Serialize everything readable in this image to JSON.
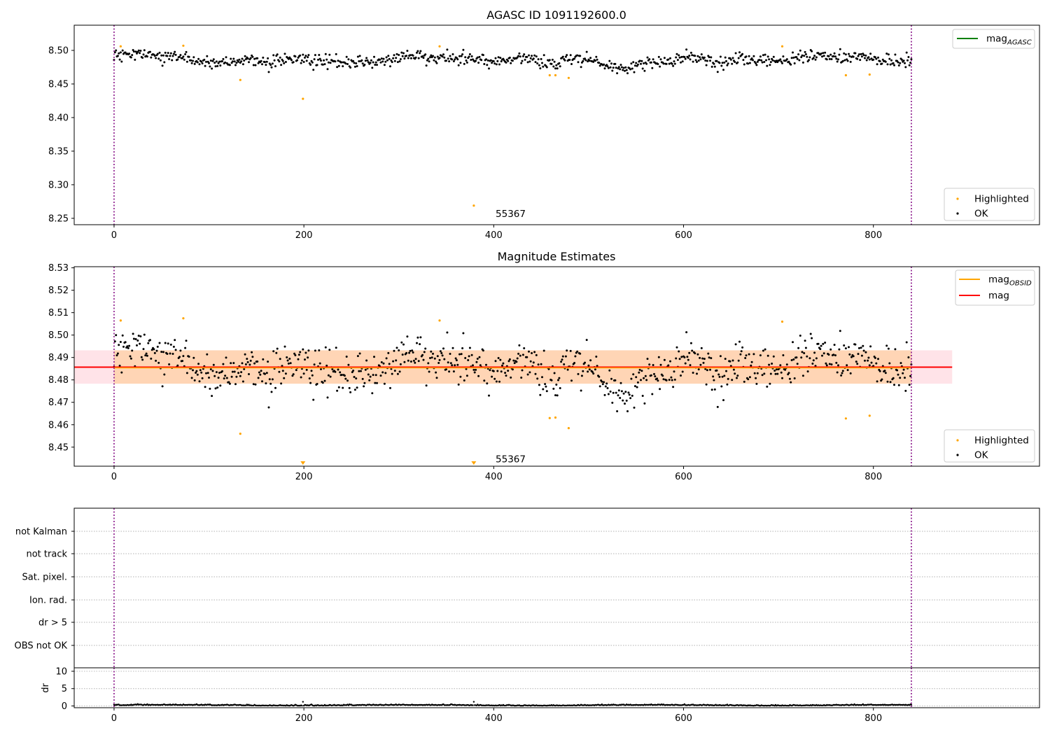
{
  "chart_data": [
    {
      "type": "scatter",
      "title": "AGASC ID 1091192600.0",
      "xlabel": "",
      "ylabel": "",
      "xlim": [
        -42,
        975
      ],
      "ylim": [
        8.2405,
        8.5375
      ],
      "xticks": [
        "0",
        "200",
        "400",
        "600",
        "800"
      ],
      "yticks": [
        "8.25",
        "8.30",
        "8.35",
        "8.40",
        "8.45",
        "8.50"
      ],
      "vlines": [
        0,
        840
      ],
      "annotation": {
        "text": "55367",
        "x": 402,
        "y": 8.252
      },
      "legends": [
        {
          "placement": "upper right",
          "entries": [
            {
              "label": "mag",
              "subscript": "AGASC",
              "color": "#008000"
            }
          ]
        },
        {
          "placement": "lower right",
          "entries": [
            {
              "label": "Highlighted",
              "color": "#ffa500"
            },
            {
              "label": "OK",
              "color": "#000000"
            }
          ]
        }
      ],
      "series": [
        {
          "name": "OK",
          "color": "#000000",
          "n_points": 841,
          "baseline": 8.486,
          "spread": 0.006,
          "note": "dense band of points between ~8.467 and ~8.505"
        },
        {
          "name": "Highlighted",
          "color": "#ffa500",
          "x": [
            7,
            73,
            133,
            199,
            343,
            379,
            459,
            465,
            479,
            704,
            771,
            796
          ],
          "y": [
            8.506,
            8.507,
            8.456,
            8.428,
            8.506,
            8.269,
            8.463,
            8.463,
            8.459,
            8.506,
            8.463,
            8.464
          ]
        }
      ]
    },
    {
      "type": "scatter",
      "title": "Magnitude Estimates",
      "xlabel": "",
      "ylabel": "",
      "xlim": [
        -42,
        975
      ],
      "ylim": [
        8.4415,
        8.5305
      ],
      "xticks": [
        "0",
        "200",
        "400",
        "600",
        "800"
      ],
      "yticks": [
        "8.45",
        "8.46",
        "8.47",
        "8.48",
        "8.49",
        "8.50",
        "8.51",
        "8.52",
        "8.53"
      ],
      "vlines": [
        0,
        840
      ],
      "mag_line": 8.4857,
      "mag_obsid_line": 8.4857,
      "mag_band": [
        8.4783,
        8.4932
      ],
      "band_x": [
        -42,
        883
      ],
      "annotation": {
        "text": "55367",
        "x": 402,
        "y": 8.4432
      },
      "clipped_markers_x": [
        199,
        379
      ],
      "legends": [
        {
          "placement": "upper right",
          "entries": [
            {
              "label": "mag",
              "subscript": "OBSID",
              "color": "#ffa500"
            },
            {
              "label": "mag",
              "subscript": "",
              "color": "#ff0000"
            }
          ]
        },
        {
          "placement": "lower right",
          "entries": [
            {
              "label": "Highlighted",
              "color": "#ffa500"
            },
            {
              "label": "OK",
              "color": "#000000"
            }
          ]
        }
      ],
      "series": [
        {
          "name": "OK",
          "color": "#000000",
          "n_points": 841,
          "baseline": 8.486,
          "spread": 0.006
        },
        {
          "name": "Highlighted",
          "color": "#ffa500",
          "x": [
            7,
            73,
            133,
            343,
            459,
            465,
            479,
            704,
            771,
            796
          ],
          "y": [
            8.5065,
            8.5075,
            8.456,
            8.5065,
            8.463,
            8.4632,
            8.4585,
            8.506,
            8.4628,
            8.464
          ]
        }
      ]
    },
    {
      "type": "table",
      "title": "",
      "categories": [
        "not Kalman",
        "not track",
        "Sat. pixel.",
        "Ion. rad.",
        "dr > 5",
        "OBS not OK"
      ],
      "xlim": [
        -42,
        975
      ],
      "vlines": [
        0,
        840
      ],
      "grid": true
    },
    {
      "type": "scatter",
      "title": "",
      "xlabel": "",
      "ylabel": "dr",
      "xlim": [
        -42,
        975
      ],
      "ylim": [
        -0.5,
        11
      ],
      "xticks": [
        "0",
        "200",
        "400",
        "600",
        "800"
      ],
      "yticks": [
        "0",
        "5",
        "10"
      ],
      "vlines": [
        0,
        840
      ],
      "series": [
        {
          "name": "dr",
          "color": "#000000",
          "n_points": 841,
          "baseline": 0.15,
          "spread": 0.2
        }
      ]
    }
  ]
}
